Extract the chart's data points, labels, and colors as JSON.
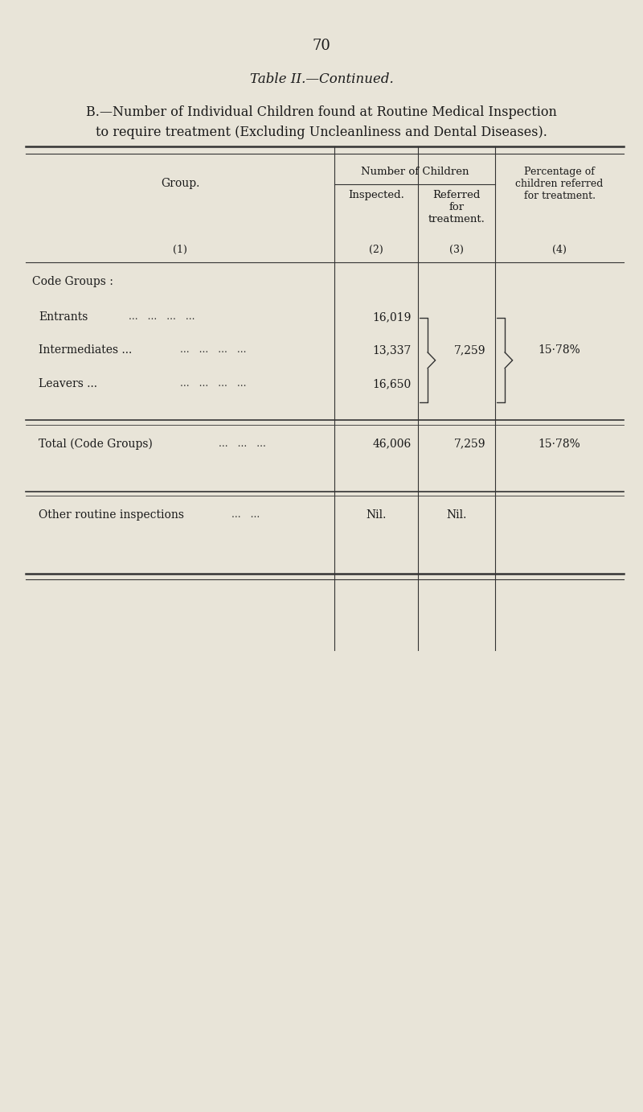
{
  "page_number": "70",
  "table_title": "Table II.—Continued.",
  "subtitle_line1": "B.—Number of Individual Children found at Routine Medical Inspection",
  "subtitle_line2": "to require treatment (Excluding Uncleanliness and Dental Diseases).",
  "col_header_span": "Number of Children",
  "col1_header": "Group.",
  "col1_sub": "(1)",
  "col2_header": "Inspected.",
  "col2_sub": "(2)",
  "col3_header": "Referred\nfor\ntreatment.",
  "col3_sub": "(3)",
  "col4_header": "Percentage of\nchildren referred\nfor treatment.",
  "col4_sub": "(4)",
  "section_header": "Code Groups :",
  "rows": [
    {
      "group": "Entrants",
      "dots": "...   ...   ...   ...",
      "inspected": "16,019",
      "referred": "",
      "percentage": ""
    },
    {
      "group": "Intermediates ...",
      "dots": "...   ...   ...   ...",
      "inspected": "13,337",
      "referred": "7,259",
      "percentage": "15·78%"
    },
    {
      "group": "Leavers ...",
      "dots": "...   ...   ...   ...",
      "inspected": "16,650",
      "referred": "",
      "percentage": ""
    }
  ],
  "total_row": {
    "group": "Total (Code Groups)",
    "dots": "...   ...   ...",
    "inspected": "46,006",
    "referred": "7,259",
    "percentage": "15·78%"
  },
  "other_row": {
    "group": "Other routine inspections",
    "dots": "...   ...",
    "inspected": "Nil.",
    "referred": "Nil.",
    "percentage": ""
  },
  "bg_color": "#e8e4d8",
  "text_color": "#1a1a1a",
  "line_color": "#333333"
}
